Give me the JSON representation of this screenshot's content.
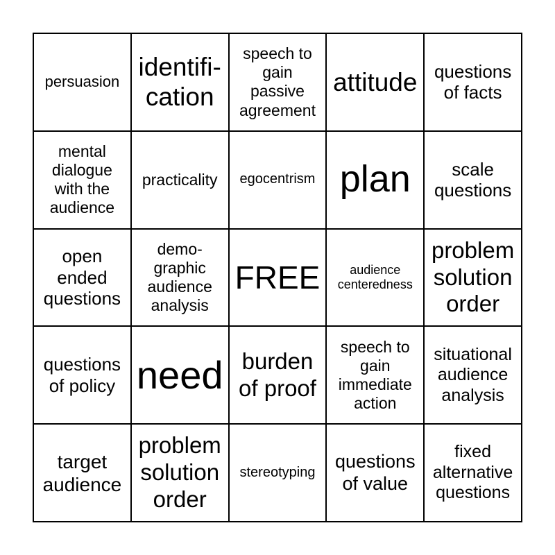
{
  "cells": [
    {
      "text": "persuasion",
      "size": 22
    },
    {
      "text": "identifi-\ncation",
      "size": 37
    },
    {
      "text": "speech to\ngain\npassive\nagreement",
      "size": 23
    },
    {
      "text": "attitude",
      "size": 37
    },
    {
      "text": "questions\nof facts",
      "size": 26
    },
    {
      "text": "mental\ndialogue\nwith the\naudience",
      "size": 23
    },
    {
      "text": "practicality",
      "size": 23
    },
    {
      "text": "egocentrism",
      "size": 20
    },
    {
      "text": "plan",
      "size": 54
    },
    {
      "text": "scale\nquestions",
      "size": 26
    },
    {
      "text": "open\nended\nquestions",
      "size": 26
    },
    {
      "text": "demo-\ngraphic\naudience\nanalysis",
      "size": 23
    },
    {
      "text": "FREE",
      "size": 46
    },
    {
      "text": "audience\ncenteredness",
      "size": 18
    },
    {
      "text": "problem\nsolution\norder",
      "size": 33
    },
    {
      "text": "questions\nof policy",
      "size": 26
    },
    {
      "text": "need",
      "size": 56
    },
    {
      "text": "burden\nof proof",
      "size": 33
    },
    {
      "text": "speech to\ngain\nimmediate\naction",
      "size": 23
    },
    {
      "text": "situational\naudience\nanalysis",
      "size": 25
    },
    {
      "text": "target\naudience",
      "size": 28
    },
    {
      "text": "problem\nsolution\norder",
      "size": 33
    },
    {
      "text": "stereotyping",
      "size": 20
    },
    {
      "text": "questions\nof value",
      "size": 27
    },
    {
      "text": "fixed\nalternative\nquestions",
      "size": 25
    }
  ]
}
